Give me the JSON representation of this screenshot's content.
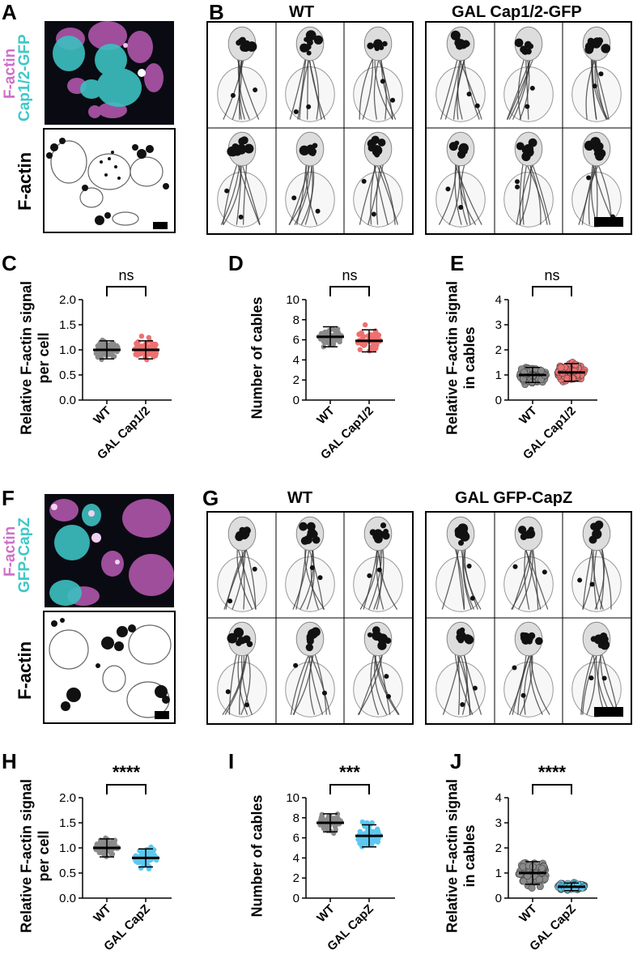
{
  "panels": {
    "A": {
      "letter": "A",
      "label_magenta": "F-actin",
      "label_cyan": "Cap1/2-GFP",
      "label_gray": "F-actin"
    },
    "B": {
      "letter": "B",
      "title_wt": "WT",
      "title_gal": "GAL Cap1/2-GFP"
    },
    "C": {
      "letter": "C"
    },
    "D": {
      "letter": "D"
    },
    "E": {
      "letter": "E"
    },
    "F": {
      "letter": "F",
      "label_magenta": "F-actin",
      "label_cyan": "GFP-CapZ",
      "label_gray": "F-actin"
    },
    "G": {
      "letter": "G",
      "title_wt": "WT",
      "title_gal": "GAL GFP-CapZ"
    },
    "H": {
      "letter": "H"
    },
    "I": {
      "letter": "I"
    },
    "J": {
      "letter": "J"
    }
  },
  "colors": {
    "magenta": "#d070c8",
    "cyan": "#40c8c8",
    "wt_dots": "#8a8a8a",
    "cap12_dots": "#ee7070",
    "capz_dots": "#5cc8f0"
  },
  "chart_data": [
    {
      "id": "C",
      "type": "scatter",
      "ylabel": "Relative F-actin signal per cell",
      "categories": [
        "WT",
        "GAL Cap1/2"
      ],
      "ylim": [
        0,
        2.0
      ],
      "yticks": [
        "0.0",
        "0.5",
        "1.0",
        "1.5",
        "2.0"
      ],
      "mean": [
        1.0,
        1.0
      ],
      "sd": [
        0.18,
        0.18
      ],
      "significance": "ns"
    },
    {
      "id": "D",
      "type": "scatter",
      "ylabel": "Number of cables",
      "categories": [
        "WT",
        "GAL Cap1/2"
      ],
      "ylim": [
        0,
        10
      ],
      "yticks": [
        "0",
        "2",
        "4",
        "6",
        "8",
        "10"
      ],
      "mean": [
        6.3,
        5.9
      ],
      "sd": [
        1.0,
        1.1
      ],
      "significance": "ns"
    },
    {
      "id": "E",
      "type": "scatter",
      "ylabel": "Relative F-actin signal in cables",
      "categories": [
        "WT",
        "GAL Cap1/2"
      ],
      "ylim": [
        0,
        4
      ],
      "yticks": [
        "0",
        "1",
        "2",
        "3",
        "4"
      ],
      "mean": [
        1.0,
        1.1
      ],
      "sd": [
        0.3,
        0.35
      ],
      "significance": "ns"
    },
    {
      "id": "H",
      "type": "scatter",
      "ylabel": "Relative F-actin signal per cell",
      "categories": [
        "WT",
        "GAL CapZ"
      ],
      "ylim": [
        0,
        2.0
      ],
      "yticks": [
        "0.0",
        "0.5",
        "1.0",
        "1.5",
        "2.0"
      ],
      "mean": [
        1.0,
        0.8
      ],
      "sd": [
        0.18,
        0.18
      ],
      "significance": "****"
    },
    {
      "id": "I",
      "type": "scatter",
      "ylabel": "Number of cables",
      "categories": [
        "WT",
        "GAL CapZ"
      ],
      "ylim": [
        0,
        10
      ],
      "yticks": [
        "0",
        "2",
        "4",
        "6",
        "8",
        "10"
      ],
      "mean": [
        7.5,
        6.2
      ],
      "sd": [
        0.9,
        1.1
      ],
      "significance": "***"
    },
    {
      "id": "J",
      "type": "scatter",
      "ylabel": "Relative F-actin signal in cables",
      "categories": [
        "WT",
        "GAL CapZ"
      ],
      "ylim": [
        0,
        4
      ],
      "yticks": [
        "0",
        "1",
        "2",
        "3",
        "4"
      ],
      "mean": [
        1.0,
        0.45
      ],
      "sd": [
        0.45,
        0.15
      ],
      "significance": "****"
    }
  ]
}
